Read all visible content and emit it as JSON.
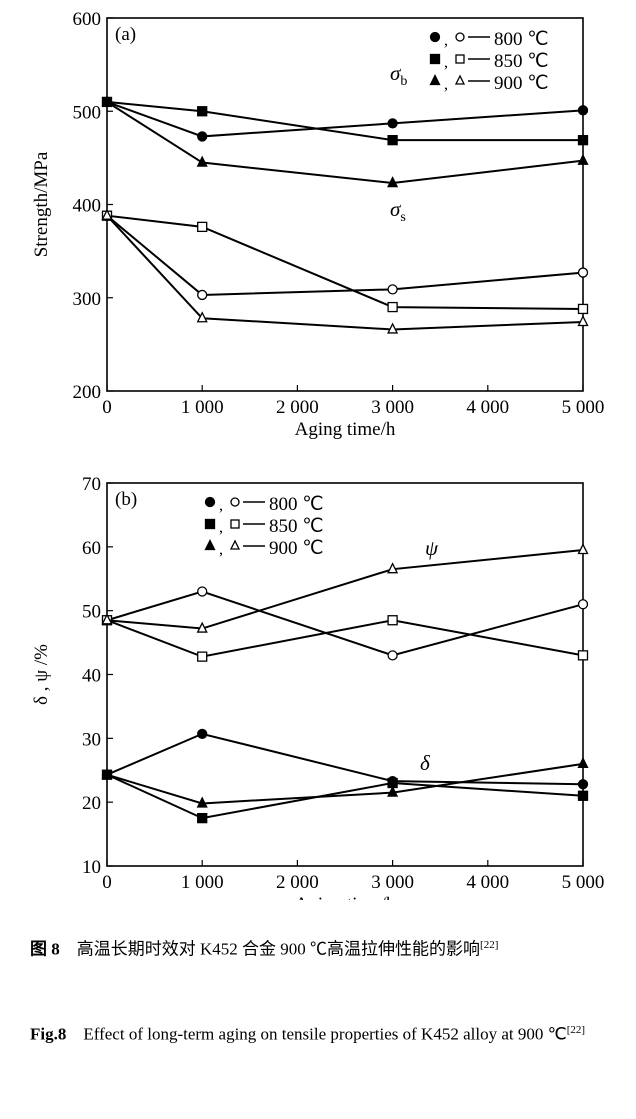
{
  "chart_data": [
    {
      "type": "line",
      "panel_label": "(a)",
      "xlabel": "Aging time/h",
      "ylabel": "Strength/MPa",
      "xlim": [
        0,
        5000
      ],
      "ylim": [
        200,
        600
      ],
      "x_ticks": [
        "0",
        "1 000",
        "2 000",
        "3 000",
        "4 000",
        "5 000"
      ],
      "y_ticks": [
        "200",
        "300",
        "400",
        "500",
        "600"
      ],
      "legend": [
        "●，○— 800 ℃",
        "■，□— 850 ℃",
        "▲，△— 900 ℃"
      ],
      "legend_position": "top-right",
      "annotations": [
        {
          "text": "σ",
          "sub": "b"
        },
        {
          "text": "σ",
          "sub": "s"
        }
      ],
      "x": [
        0,
        1000,
        3000,
        5000
      ],
      "series": [
        {
          "group": "σb",
          "temp": "800 ℃",
          "marker": "circle",
          "filled": true,
          "values": [
            510,
            473,
            487,
            501
          ]
        },
        {
          "group": "σb",
          "temp": "850 ℃",
          "marker": "square",
          "filled": true,
          "values": [
            510,
            500,
            469,
            469
          ]
        },
        {
          "group": "σb",
          "temp": "900 ℃",
          "marker": "triangle",
          "filled": true,
          "values": [
            510,
            445,
            423,
            447
          ]
        },
        {
          "group": "σs",
          "temp": "800 ℃",
          "marker": "circle",
          "filled": false,
          "values": [
            388,
            303,
            309,
            327
          ]
        },
        {
          "group": "σs",
          "temp": "850 ℃",
          "marker": "square",
          "filled": false,
          "values": [
            388,
            376,
            290,
            288
          ]
        },
        {
          "group": "σs",
          "temp": "900 ℃",
          "marker": "triangle",
          "filled": false,
          "values": [
            388,
            278,
            266,
            274
          ]
        }
      ]
    },
    {
      "type": "line",
      "panel_label": "(b)",
      "xlabel": "Aging time/h",
      "ylabel": "δ , ψ /%",
      "xlim": [
        0,
        5000
      ],
      "ylim": [
        10,
        70
      ],
      "x_ticks": [
        "0",
        "1 000",
        "2 000",
        "3 000",
        "4 000",
        "5 000"
      ],
      "y_ticks": [
        "10",
        "20",
        "30",
        "40",
        "50",
        "60",
        "70"
      ],
      "legend": [
        "●，○— 800 ℃",
        "■，□— 850 ℃",
        "▲，△— 900 ℃"
      ],
      "legend_position": "top-left",
      "annotations": [
        {
          "text": "ψ"
        },
        {
          "text": "δ"
        }
      ],
      "x": [
        0,
        1000,
        3000,
        5000
      ],
      "series": [
        {
          "group": "ψ",
          "temp": "800 ℃",
          "marker": "circle",
          "filled": false,
          "values": [
            48.5,
            53,
            43,
            51
          ]
        },
        {
          "group": "ψ",
          "temp": "850 ℃",
          "marker": "square",
          "filled": false,
          "values": [
            48.5,
            42.8,
            48.5,
            43
          ]
        },
        {
          "group": "ψ",
          "temp": "900 ℃",
          "marker": "triangle",
          "filled": false,
          "values": [
            48.5,
            47.2,
            56.5,
            59.5
          ]
        },
        {
          "group": "δ",
          "temp": "800 ℃",
          "marker": "circle",
          "filled": true,
          "values": [
            24.3,
            30.7,
            23.3,
            22.8
          ]
        },
        {
          "group": "δ",
          "temp": "850 ℃",
          "marker": "square",
          "filled": true,
          "values": [
            24.3,
            17.5,
            23,
            21
          ]
        },
        {
          "group": "δ",
          "temp": "900 ℃",
          "marker": "triangle",
          "filled": true,
          "values": [
            24.3,
            19.8,
            21.5,
            26
          ]
        }
      ]
    }
  ],
  "caption": {
    "cn_label": "图 8",
    "cn_text": "高温长期时效对 K452 合金 900 ℃高温拉伸性能的影响",
    "cn_ref": "[22]",
    "en_label": "Fig.8",
    "en_text": "Effect of long-term aging on tensile properties of K452 alloy at 900 ℃",
    "en_ref": "[22]"
  }
}
